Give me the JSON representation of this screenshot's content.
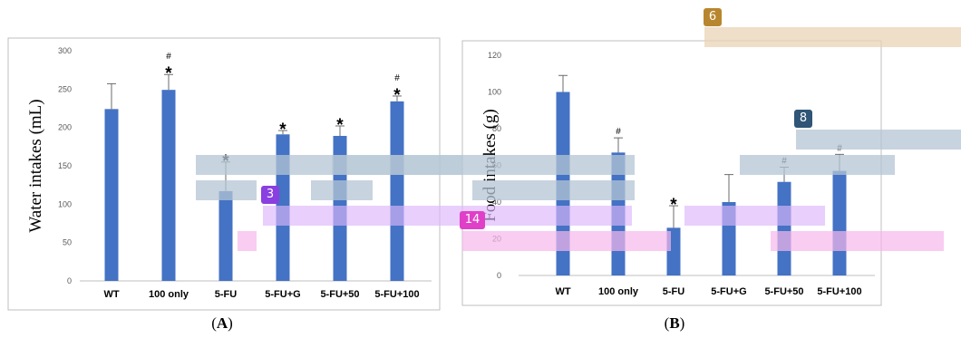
{
  "header_line": "",
  "chart_data": [
    {
      "type": "bar",
      "panel_label": "A",
      "title": "",
      "ylabel": "Water intakes (mL)",
      "xlabel": "",
      "ylim": [
        0,
        300
      ],
      "yticks": [
        "0",
        "50",
        "100",
        "150",
        "200",
        "250",
        "300"
      ],
      "categories": [
        "WT",
        "100 only",
        "5-FU",
        "5-FU+G",
        "5-FU+50",
        "5-FU+100"
      ],
      "values": [
        224,
        249,
        117,
        191,
        189,
        234
      ],
      "errors": [
        33,
        20,
        38,
        5,
        13,
        7
      ],
      "star": [
        "",
        "*",
        "*",
        "*",
        "*",
        "*"
      ],
      "hash": [
        "",
        "#",
        "",
        "",
        "",
        "#"
      ],
      "grid": false,
      "bar_color": "#4472C4"
    },
    {
      "type": "bar",
      "panel_label": "B",
      "title": "",
      "ylabel": "Food intakes (g)",
      "xlabel": "",
      "ylim": [
        0,
        120
      ],
      "yticks": [
        "0",
        "20",
        "40",
        "60",
        "80",
        "100",
        "120"
      ],
      "categories": [
        "WT",
        "100 only",
        "5-FU",
        "5-FU+G",
        "5-FU+50",
        "5-FU+100"
      ],
      "values": [
        100,
        67,
        26,
        40,
        51,
        57
      ],
      "errors": [
        9,
        8,
        12,
        15,
        8,
        9
      ],
      "star": [
        "",
        "",
        "*",
        "",
        "",
        ""
      ],
      "hash": [
        "",
        "#",
        "",
        "",
        "#",
        "#"
      ],
      "grid": false,
      "bar_color": "#4472C4"
    }
  ],
  "overlay_labels": [
    "3",
    "14",
    "6",
    "8"
  ],
  "overlay_colors": {
    "slate": "#b4c6d4",
    "violet": "#dcb6fb",
    "pink": "#f7b7ec",
    "tan": "#e9d3b5",
    "badge_violet": "#8a3fe0",
    "badge_magenta": "#e040c8",
    "badge_gold": "#b8862e",
    "badge_navy": "#2f5577"
  }
}
